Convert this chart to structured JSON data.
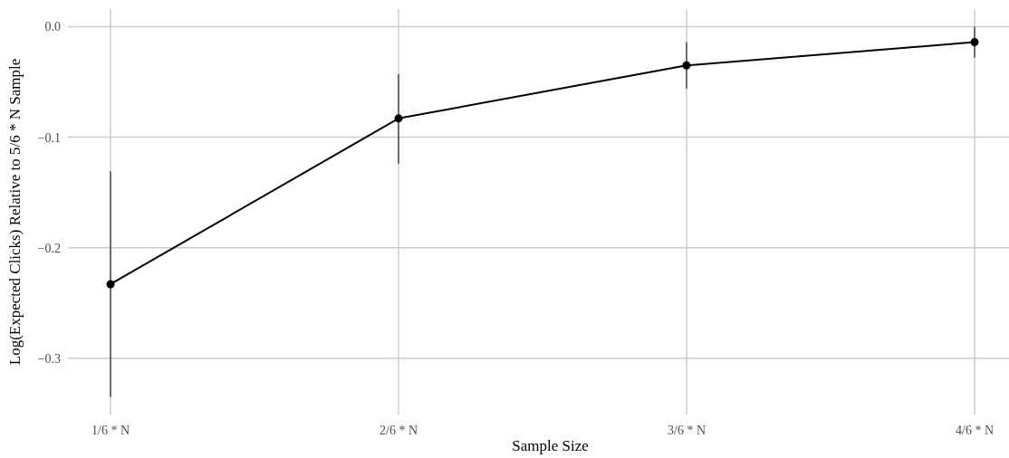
{
  "chart_data": {
    "type": "line",
    "xlabel": "Sample Size",
    "ylabel": "Log(Expected Clicks) Relative to 5/6 * N Sample",
    "categories": [
      "1/6 * N",
      "2/6 * N",
      "3/6 * N",
      "4/6 * N"
    ],
    "series": [
      {
        "color": "#000000",
        "values": [
          -0.233,
          -0.083,
          -0.035,
          -0.014
        ],
        "errors": [
          [
            -0.335,
            -0.131
          ],
          [
            -0.124,
            -0.043
          ],
          [
            -0.056,
            -0.014
          ],
          [
            -0.028,
            0.0
          ]
        ]
      }
    ],
    "ylim": [
      -0.351,
      0.016
    ],
    "yticks": [
      {
        "value": -0.3,
        "label": "−0.3"
      },
      {
        "value": -0.2,
        "label": "−0.2"
      },
      {
        "value": -0.1,
        "label": "−0.1"
      },
      {
        "value": 0,
        "label": "0.0"
      }
    ],
    "grid": true,
    "marker": "circle",
    "line_style": "solid"
  }
}
